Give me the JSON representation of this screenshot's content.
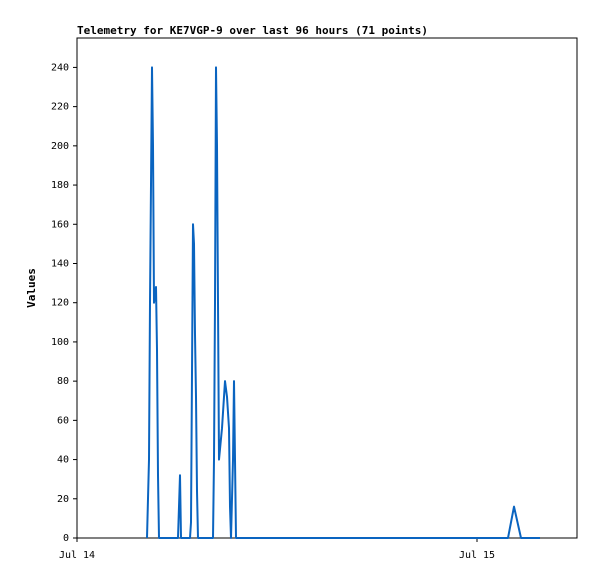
{
  "chart_data": {
    "type": "line",
    "title": "Telemetry for KE7VGP-9 over last 96 hours (71 points)",
    "y_label": "Values",
    "x": [
      4.2,
      4.32,
      4.38,
      4.5,
      4.56,
      4.62,
      4.74,
      4.8,
      4.86,
      4.92,
      6.06,
      6.18,
      6.24,
      6.78,
      6.84,
      6.96,
      7.02,
      7.08,
      7.14,
      7.2,
      7.26,
      8.16,
      8.22,
      8.28,
      8.34,
      8.4,
      8.46,
      8.52,
      8.7,
      8.88,
      9.0,
      9.12,
      9.18,
      9.24,
      9.36,
      9.42,
      9.48,
      9.54,
      25.86,
      26.22,
      26.64,
      27.78
    ],
    "series": [
      {
        "color": "#0a64c0",
        "values": [
          0,
          40,
          120,
          240,
          200,
          120,
          128,
          96,
          32,
          0,
          0,
          32,
          0,
          0,
          8,
          160,
          150,
          104,
          72,
          24,
          0,
          0,
          40,
          120,
          240,
          200,
          120,
          40,
          56,
          80,
          72,
          56,
          16,
          0,
          40,
          80,
          40,
          0,
          0,
          16,
          0,
          0
        ]
      }
    ],
    "xlim": [
      0,
      30
    ],
    "xticks": [
      {
        "value": 0,
        "label": "Jul 14"
      },
      {
        "value": 24,
        "label": "Jul 15"
      }
    ],
    "ylim": [
      0,
      255
    ],
    "yticks": [
      0,
      20,
      40,
      60,
      80,
      100,
      120,
      140,
      160,
      180,
      200,
      220,
      240
    ],
    "grid": false
  }
}
